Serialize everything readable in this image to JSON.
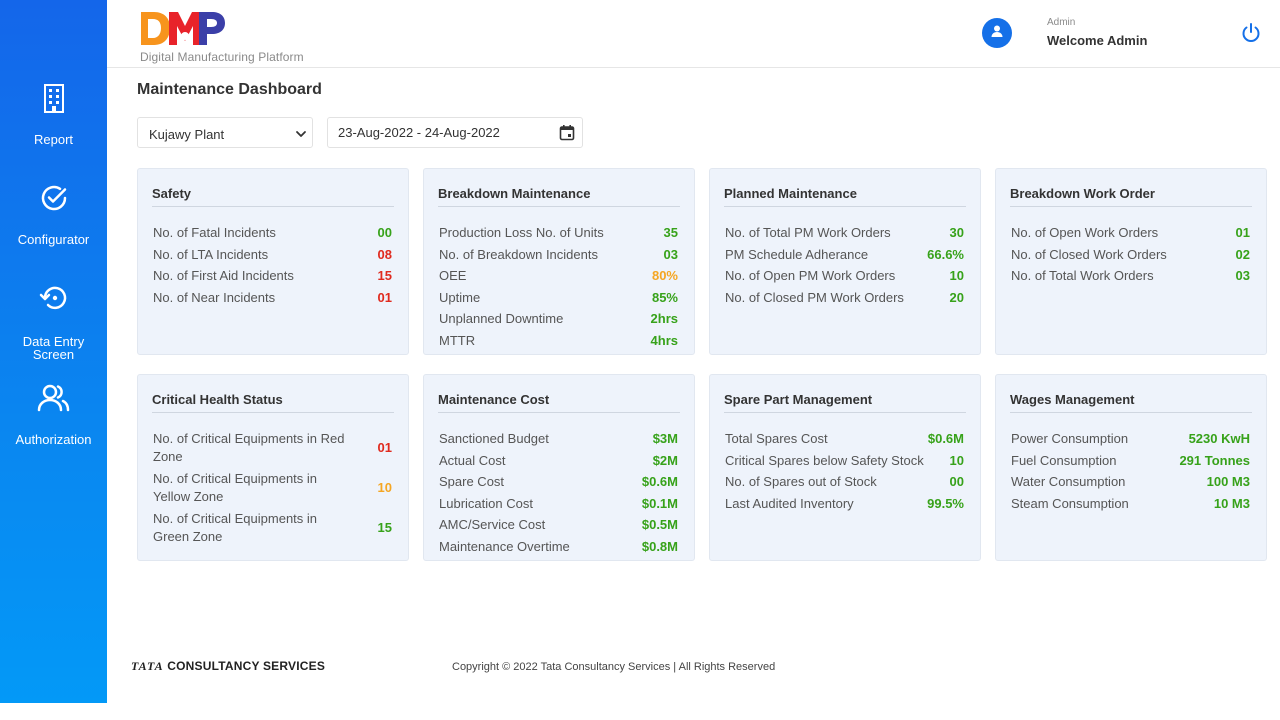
{
  "sidebar": {
    "items": [
      {
        "label": "Report",
        "icon": "building-icon"
      },
      {
        "label": "Configurator",
        "icon": "check-circle-icon"
      },
      {
        "label_line1": "Data Entry",
        "label_line2": "Screen",
        "icon": "history-icon"
      },
      {
        "label": "Authorization",
        "icon": "users-icon"
      }
    ]
  },
  "header": {
    "logo_text": "DMP",
    "logo_subtitle": "Digital Manufacturing Platform",
    "user_role": "Admin",
    "welcome": "Welcome Admin"
  },
  "page": {
    "title": "Maintenance Dashboard",
    "plant": "Kujawy Plant",
    "date_range": "23-Aug-2022 - 24-Aug-2022"
  },
  "colors": {
    "green": "#37a21a",
    "red": "#e02a1e",
    "orange": "#f5a623",
    "sidebar": "#0b7fef"
  },
  "cards": [
    {
      "title": "Safety",
      "rows": [
        {
          "k": "No. of Fatal Incidents",
          "v": "00",
          "c": "green"
        },
        {
          "k": "No. of LTA Incidents",
          "v": "08",
          "c": "red"
        },
        {
          "k": "No. of First Aid Incidents",
          "v": "15",
          "c": "red"
        },
        {
          "k": "No. of Near Incidents",
          "v": "01",
          "c": "red"
        }
      ]
    },
    {
      "title": "Breakdown Maintenance",
      "rows": [
        {
          "k": "Production Loss No. of Units",
          "v": "35",
          "c": "green"
        },
        {
          "k": "No. of Breakdown Incidents",
          "v": "03",
          "c": "green"
        },
        {
          "k": "OEE",
          "v": "80%",
          "c": "orange"
        },
        {
          "k": "Uptime",
          "v": "85%",
          "c": "green"
        },
        {
          "k": "Unplanned Downtime",
          "v": "2hrs",
          "c": "green"
        },
        {
          "k": "MTTR",
          "v": "4hrs",
          "c": "green"
        }
      ]
    },
    {
      "title": "Planned Maintenance",
      "rows": [
        {
          "k": "No. of Total PM Work Orders",
          "v": "30",
          "c": "green"
        },
        {
          "k": "PM Schedule Adherance",
          "v": "66.6%",
          "c": "green"
        },
        {
          "k": "No. of Open PM Work Orders",
          "v": "10",
          "c": "green"
        },
        {
          "k": "No. of Closed PM Work Orders",
          "v": "20",
          "c": "green"
        }
      ]
    },
    {
      "title": "Breakdown Work Order",
      "rows": [
        {
          "k": "No. of Open Work Orders",
          "v": "01",
          "c": "green"
        },
        {
          "k": "No. of Closed Work Orders",
          "v": "02",
          "c": "green"
        },
        {
          "k": "No. of Total Work Orders",
          "v": "03",
          "c": "green"
        }
      ]
    },
    {
      "title": "Critical Health Status",
      "rows": [
        {
          "k": "No. of Critical Equipments in Red Zone",
          "v": "01",
          "c": "red"
        },
        {
          "k": "No. of Critical Equipments in Yellow Zone",
          "v": "10",
          "c": "orange"
        },
        {
          "k": "No. of Critical Equipments in Green Zone",
          "v": "15",
          "c": "green"
        }
      ]
    },
    {
      "title": "Maintenance Cost",
      "rows": [
        {
          "k": "Sanctioned Budget",
          "v": "$3M",
          "c": "green"
        },
        {
          "k": "Actual Cost",
          "v": "$2M",
          "c": "green"
        },
        {
          "k": "Spare Cost",
          "v": "$0.6M",
          "c": "green"
        },
        {
          "k": "Lubrication Cost",
          "v": "$0.1M",
          "c": "green"
        },
        {
          "k": "AMC/Service Cost",
          "v": "$0.5M",
          "c": "green"
        },
        {
          "k": "Maintenance Overtime",
          "v": "$0.8M",
          "c": "green"
        }
      ]
    },
    {
      "title": "Spare Part Management",
      "rows": [
        {
          "k": "Total Spares Cost",
          "v": "$0.6M",
          "c": "green"
        },
        {
          "k": "Critical Spares below Safety Stock",
          "v": "10",
          "c": "green"
        },
        {
          "k": "No. of Spares out of Stock",
          "v": "00",
          "c": "green"
        },
        {
          "k": "Last Audited Inventory",
          "v": "99.5%",
          "c": "green"
        }
      ]
    },
    {
      "title": "Wages Management",
      "rows": [
        {
          "k": "Power Consumption",
          "v": "5230 KwH",
          "c": "green"
        },
        {
          "k": "Fuel Consumption",
          "v": "291 Tonnes",
          "c": "green"
        },
        {
          "k": "Water Consumption",
          "v": "100 M3",
          "c": "green"
        },
        {
          "k": "Steam Consumption",
          "v": "10 M3",
          "c": "green"
        }
      ]
    }
  ],
  "footer": {
    "brand_tata": "TATA",
    "brand_rest": "CONSULTANCY SERVICES",
    "copyright": "Copyright © 2022 Tata Consultancy Services | All Rights Reserved"
  }
}
